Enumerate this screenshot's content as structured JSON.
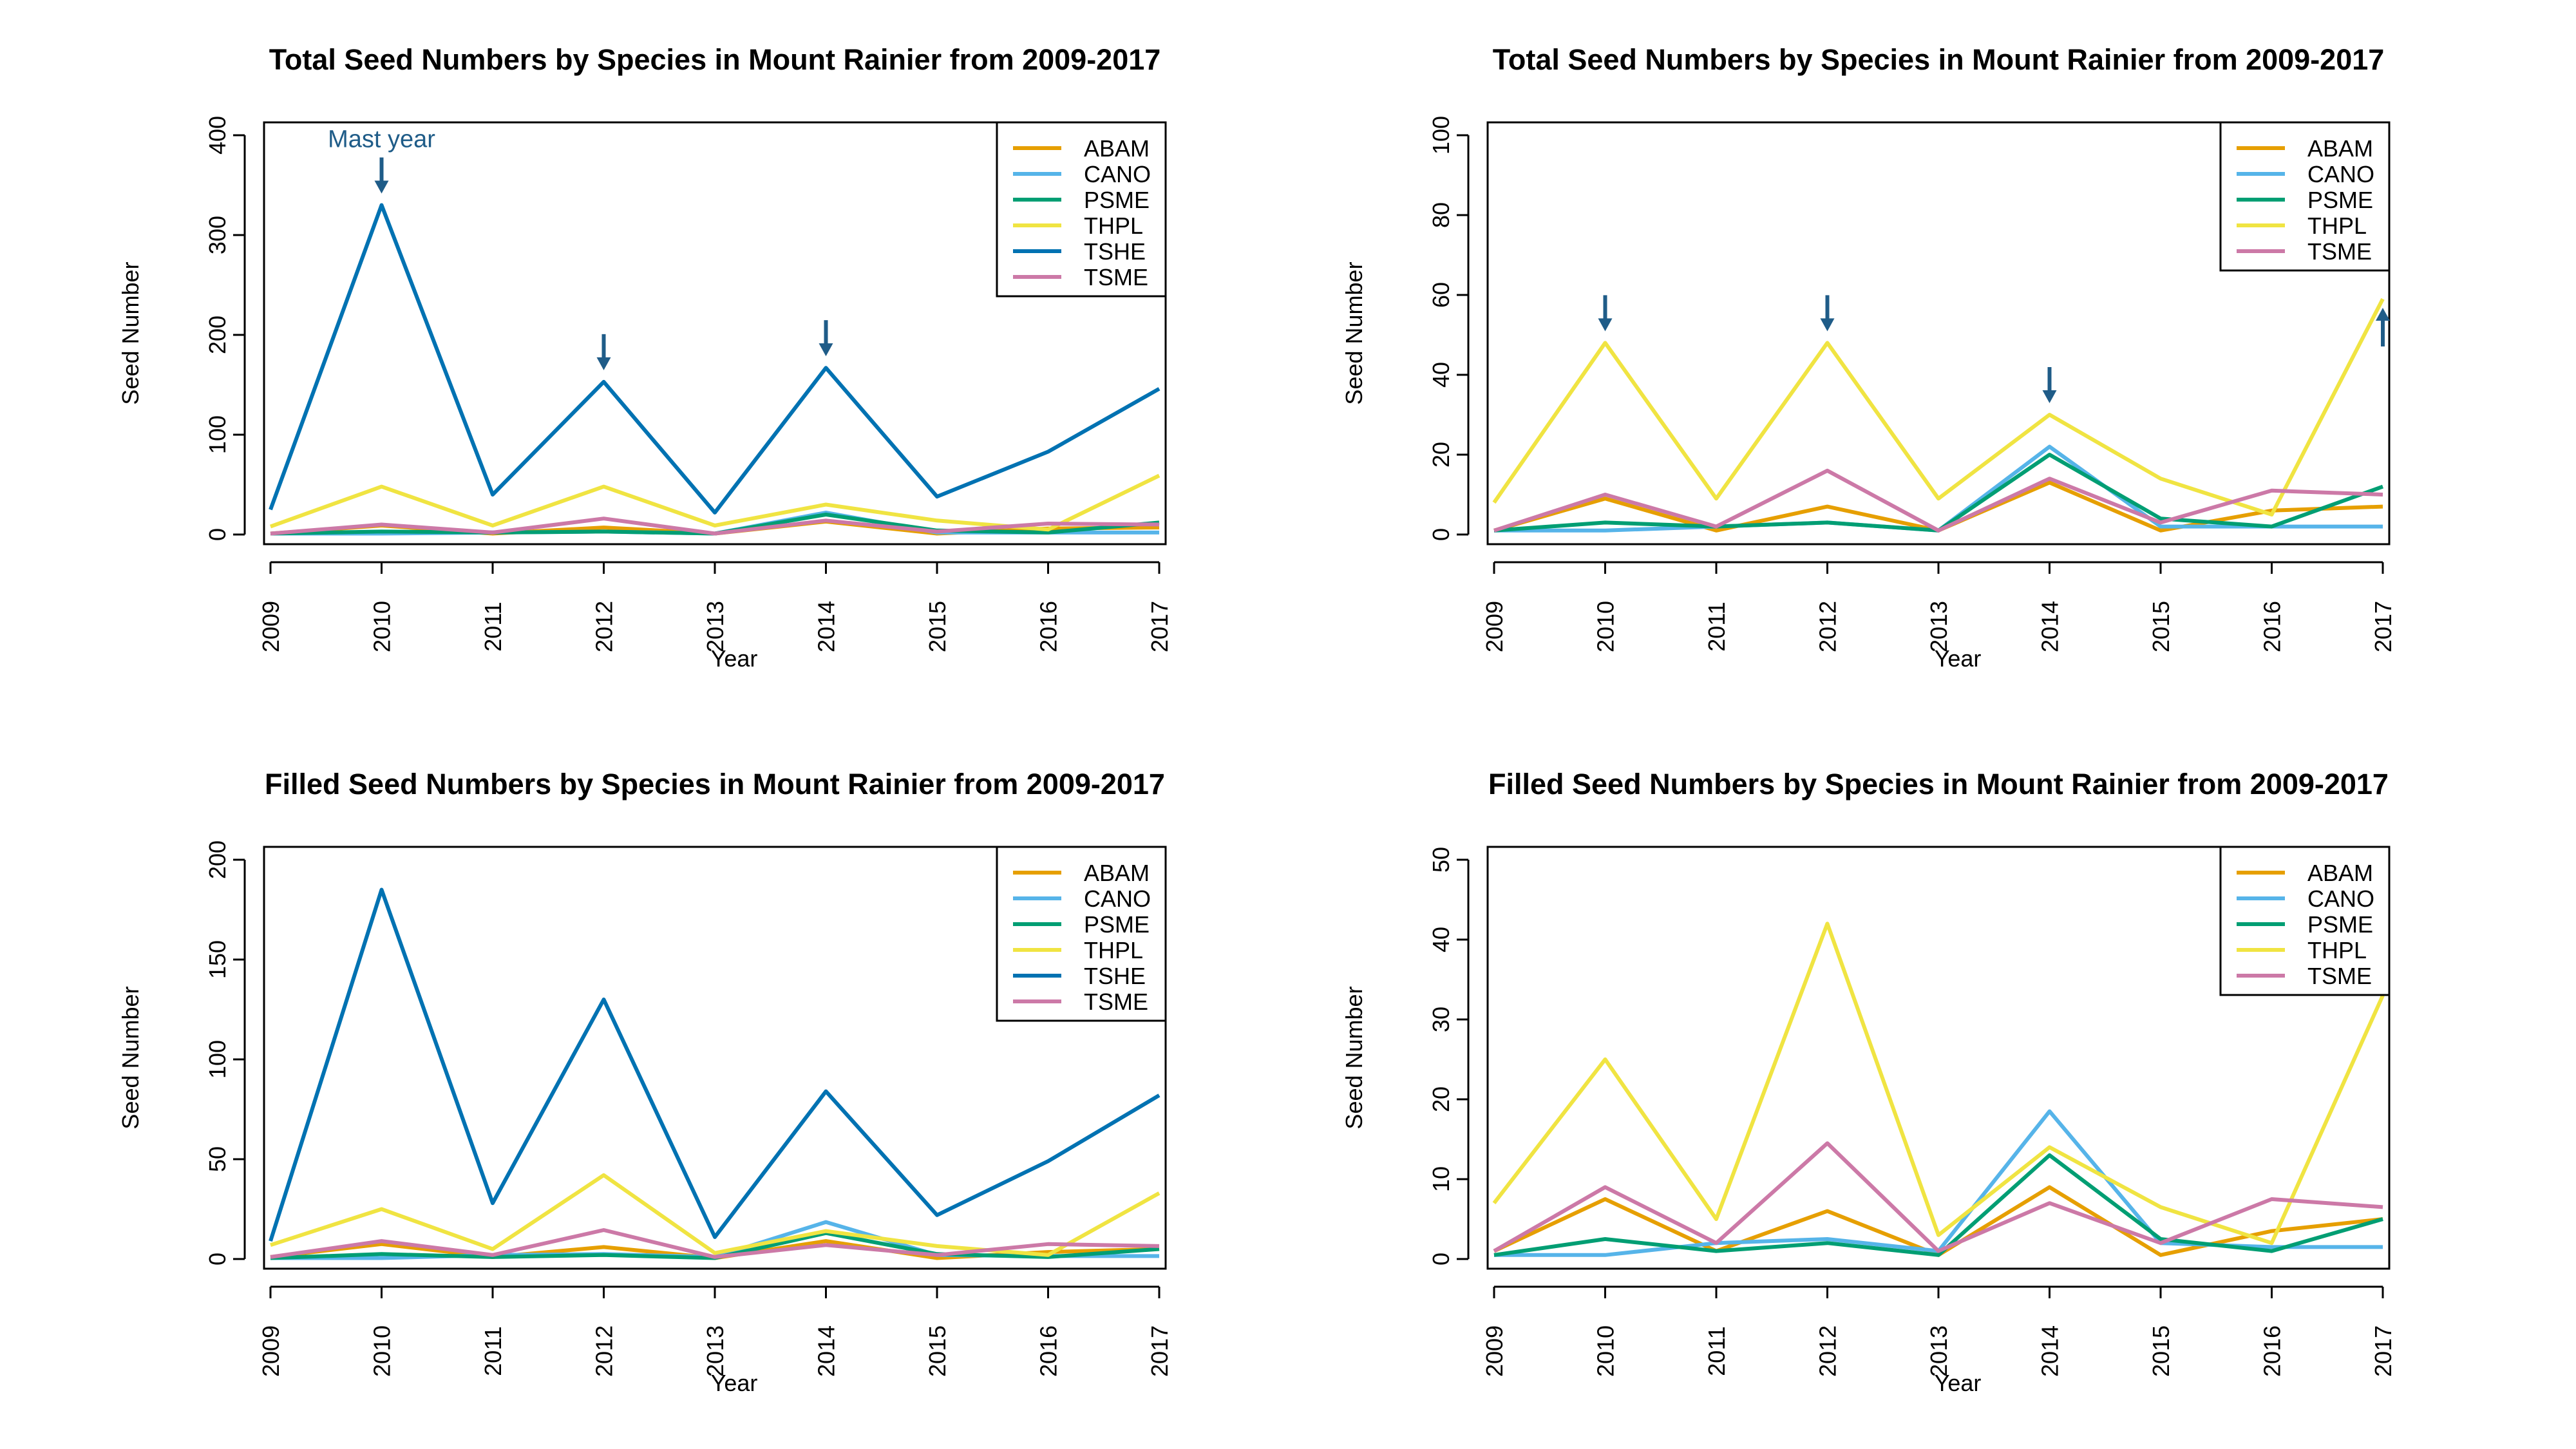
{
  "chart_data": [
    {
      "type": "line",
      "title": "Total Seed Numbers by Species in Mount Rainier from 2009-2017",
      "xlabel": "Year",
      "ylabel": "Seed Number",
      "x": [
        2009,
        2010,
        2011,
        2012,
        2013,
        2014,
        2015,
        2016,
        2017
      ],
      "ylim": [
        0,
        400
      ],
      "yticks": [
        0,
        100,
        200,
        300,
        400
      ],
      "legend": "top-right",
      "grid": false,
      "series": [
        {
          "name": "ABAM",
          "color": "#E69F00",
          "values": [
            1,
            9,
            1,
            7,
            1,
            13,
            1,
            6,
            7
          ]
        },
        {
          "name": "CANO",
          "color": "#56B4E9",
          "values": [
            1,
            1,
            2,
            3,
            1,
            22,
            2,
            2,
            2
          ]
        },
        {
          "name": "PSME",
          "color": "#009E73",
          "values": [
            1,
            3,
            2,
            3,
            1,
            20,
            4,
            2,
            12
          ]
        },
        {
          "name": "THPL",
          "color": "#F0E442",
          "values": [
            8,
            48,
            9,
            48,
            9,
            30,
            14,
            5,
            59
          ]
        },
        {
          "name": "TSHE",
          "color": "#0072B2",
          "values": [
            25,
            330,
            40,
            153,
            22,
            167,
            38,
            83,
            146
          ]
        },
        {
          "name": "TSME",
          "color": "#CC79A7",
          "values": [
            1,
            10,
            2,
            16,
            1,
            14,
            3,
            11,
            10
          ]
        }
      ],
      "annotations": [
        {
          "text": "Mast year",
          "x": 2010,
          "y": 330,
          "direction": "down"
        },
        {
          "text": "",
          "x": 2012,
          "y": 153,
          "direction": "down"
        },
        {
          "text": "",
          "x": 2014,
          "y": 167,
          "direction": "down"
        }
      ]
    },
    {
      "type": "line",
      "title": "Total Seed Numbers by Species in Mount Rainier from 2009-2017",
      "xlabel": "Year",
      "ylabel": "Seed Number",
      "x": [
        2009,
        2010,
        2011,
        2012,
        2013,
        2014,
        2015,
        2016,
        2017
      ],
      "ylim": [
        0,
        100
      ],
      "yticks": [
        0,
        20,
        40,
        60,
        80,
        100
      ],
      "legend": "top-right",
      "grid": false,
      "series": [
        {
          "name": "ABAM",
          "color": "#E69F00",
          "values": [
            1,
            9,
            1,
            7,
            1,
            13,
            1,
            6,
            7
          ]
        },
        {
          "name": "CANO",
          "color": "#56B4E9",
          "values": [
            1,
            1,
            2,
            3,
            1,
            22,
            2,
            2,
            2
          ]
        },
        {
          "name": "PSME",
          "color": "#009E73",
          "values": [
            1,
            3,
            2,
            3,
            1,
            20,
            4,
            2,
            12
          ]
        },
        {
          "name": "THPL",
          "color": "#F0E442",
          "values": [
            8,
            48,
            9,
            48,
            9,
            30,
            14,
            5,
            59
          ]
        },
        {
          "name": "TSME",
          "color": "#CC79A7",
          "values": [
            1,
            10,
            2,
            16,
            1,
            14,
            3,
            11,
            10
          ]
        }
      ],
      "annotations": [
        {
          "text": "",
          "x": 2010,
          "y": 48,
          "direction": "down"
        },
        {
          "text": "",
          "x": 2012,
          "y": 48,
          "direction": "down"
        },
        {
          "text": "",
          "x": 2014,
          "y": 30,
          "direction": "down"
        },
        {
          "text": "",
          "x": 2017,
          "y": 50,
          "direction": "up"
        }
      ]
    },
    {
      "type": "line",
      "title": "Filled Seed Numbers by Species in Mount Rainier from 2009-2017",
      "xlabel": "Year",
      "ylabel": "Seed Number",
      "x": [
        2009,
        2010,
        2011,
        2012,
        2013,
        2014,
        2015,
        2016,
        2017
      ],
      "ylim": [
        0,
        200
      ],
      "yticks": [
        0,
        50,
        100,
        150,
        200
      ],
      "legend": "top-right",
      "grid": false,
      "series": [
        {
          "name": "ABAM",
          "color": "#E69F00",
          "values": [
            1,
            7.5,
            1,
            6,
            0.5,
            9,
            0.5,
            3.5,
            5
          ]
        },
        {
          "name": "CANO",
          "color": "#56B4E9",
          "values": [
            0.5,
            0.5,
            2,
            2.5,
            1,
            18.5,
            2,
            1.5,
            1.5
          ]
        },
        {
          "name": "PSME",
          "color": "#009E73",
          "values": [
            0.5,
            2.5,
            1,
            2,
            0.5,
            13,
            2.5,
            1,
            5
          ]
        },
        {
          "name": "THPL",
          "color": "#F0E442",
          "values": [
            7,
            25,
            5,
            42,
            3,
            14,
            6.5,
            2,
            33
          ]
        },
        {
          "name": "TSHE",
          "color": "#0072B2",
          "values": [
            9,
            185,
            28,
            130,
            11,
            84,
            22,
            49,
            82
          ]
        },
        {
          "name": "TSME",
          "color": "#CC79A7",
          "values": [
            1,
            9,
            2,
            14.5,
            1,
            7,
            2,
            7.5,
            6.5
          ]
        }
      ]
    },
    {
      "type": "line",
      "title": "Filled Seed Numbers by Species in Mount Rainier from 2009-2017",
      "xlabel": "Year",
      "ylabel": "Seed Number",
      "x": [
        2009,
        2010,
        2011,
        2012,
        2013,
        2014,
        2015,
        2016,
        2017
      ],
      "ylim": [
        0,
        50
      ],
      "yticks": [
        0,
        10,
        20,
        30,
        40,
        50
      ],
      "legend": "top-right",
      "grid": false,
      "series": [
        {
          "name": "ABAM",
          "color": "#E69F00",
          "values": [
            1,
            7.5,
            1,
            6,
            0.5,
            9,
            0.5,
            3.5,
            5
          ]
        },
        {
          "name": "CANO",
          "color": "#56B4E9",
          "values": [
            0.5,
            0.5,
            2,
            2.5,
            1,
            18.5,
            2,
            1.5,
            1.5
          ]
        },
        {
          "name": "PSME",
          "color": "#009E73",
          "values": [
            0.5,
            2.5,
            1,
            2,
            0.5,
            13,
            2.5,
            1,
            5
          ]
        },
        {
          "name": "THPL",
          "color": "#F0E442",
          "values": [
            7,
            25,
            5,
            42,
            3,
            14,
            6.5,
            2,
            33
          ]
        },
        {
          "name": "TSME",
          "color": "#CC79A7",
          "values": [
            1,
            9,
            2,
            14.5,
            1,
            7,
            2,
            7.5,
            6.5
          ]
        }
      ]
    }
  ]
}
